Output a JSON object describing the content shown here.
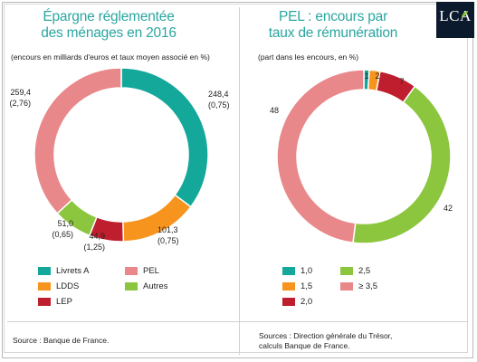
{
  "logo": {
    "text": "LCA"
  },
  "chart_data": [
    {
      "type": "pie",
      "title": "Épargne réglementée des ménages en 2016",
      "subtitle": "(encours en milliards d'euros et taux moyen associé en %)",
      "slices": [
        {
          "name": "Livrets A",
          "value": 248.4,
          "rate": "(0,75)",
          "label": "248,4",
          "color": "#14a89a"
        },
        {
          "name": "LDDS",
          "value": 101.3,
          "rate": "(0,75)",
          "label": "101,3",
          "color": "#f7941d"
        },
        {
          "name": "LEP",
          "value": 44.9,
          "rate": "(1,25)",
          "label": "44,9",
          "color": "#be1e2d"
        },
        {
          "name": "Autres",
          "value": 51.0,
          "rate": "(0,65)",
          "label": "51,0",
          "color": "#8cc63f"
        },
        {
          "name": "PEL",
          "value": 259.4,
          "rate": "(2,76)",
          "label": "259,4",
          "color": "#e9888a"
        }
      ],
      "legend": [
        "Livrets A",
        "PEL",
        "LDDS",
        "Autres",
        "LEP"
      ],
      "source": "Source : Banque de France."
    },
    {
      "type": "pie",
      "title": "PEL : encours par taux de rémunération",
      "subtitle": "(part dans les encours, en %)",
      "slices": [
        {
          "name": "1,0",
          "value": 1,
          "label": "1",
          "color": "#14a89a"
        },
        {
          "name": "1,5",
          "value": 2,
          "label": "2",
          "color": "#f7941d"
        },
        {
          "name": "2,0",
          "value": 7,
          "label": "7",
          "color": "#be1e2d"
        },
        {
          "name": "2,5",
          "value": 42,
          "label": "42",
          "color": "#8cc63f"
        },
        {
          "name": "≥ 3,5",
          "value": 48,
          "label": "48",
          "color": "#e9888a"
        }
      ],
      "legend": [
        "1,0",
        "2,5",
        "1,5",
        "≥ 3,5",
        "2,0"
      ],
      "source": "Sources : Direction générale du Trésor, calculs Banque de France."
    }
  ],
  "left": {
    "title_line1": "Épargne réglementée",
    "title_line2": "des ménages en 2016",
    "subtitle": "(encours en milliards d'euros et taux moyen associé en %)",
    "source": "Source : Banque de France."
  },
  "right": {
    "title_line1": "PEL : encours par",
    "title_line2": "taux de rémunération",
    "subtitle": "(part dans les encours, en %)",
    "source_line1": "Sources : Direction générale du Trésor,",
    "source_line2": "calculs Banque de France."
  }
}
